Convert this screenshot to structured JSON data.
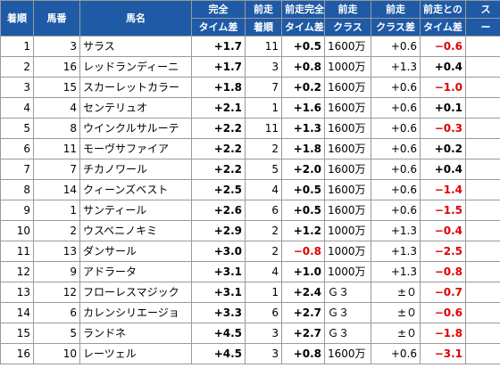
{
  "headers": {
    "rank": "着順",
    "horse_no": "馬番",
    "horse_name": "馬名",
    "gap_l1": "完全",
    "gap_l2": "タイム差",
    "prev_rank_l1": "前走",
    "prev_rank_l2": "着順",
    "prev_gap_l1": "前走完全",
    "prev_gap_l2": "タイム差",
    "prev_class_l1": "前走",
    "prev_class_l2": "クラス",
    "prev_class_gap_l1": "前走",
    "prev_class_gap_l2": "クラス差",
    "diff_l1": "前走との",
    "diff_l2": "タイム差",
    "extra_l1": "ス",
    "extra_l2": "ー"
  },
  "rows": [
    {
      "rank": "1",
      "no": "3",
      "name": "サラス",
      "gap": "+1.7",
      "prev_rank": "11",
      "prev_gap": "+0.5",
      "prev_gap_neg": false,
      "prev_class": "1600万",
      "class_gap": "+0.6",
      "diff": "−0.6",
      "diff_neg": true
    },
    {
      "rank": "2",
      "no": "16",
      "name": "レッドランディーニ",
      "gap": "+1.7",
      "prev_rank": "3",
      "prev_gap": "+0.8",
      "prev_gap_neg": false,
      "prev_class": "1000万",
      "class_gap": "+1.3",
      "diff": "+0.4",
      "diff_neg": false
    },
    {
      "rank": "3",
      "no": "15",
      "name": "スカーレットカラー",
      "gap": "+1.8",
      "prev_rank": "7",
      "prev_gap": "+0.2",
      "prev_gap_neg": false,
      "prev_class": "1600万",
      "class_gap": "+0.6",
      "diff": "−1.0",
      "diff_neg": true
    },
    {
      "rank": "4",
      "no": "4",
      "name": "センテリュオ",
      "gap": "+2.1",
      "prev_rank": "1",
      "prev_gap": "+1.6",
      "prev_gap_neg": false,
      "prev_class": "1600万",
      "class_gap": "+0.6",
      "diff": "+0.1",
      "diff_neg": false
    },
    {
      "rank": "5",
      "no": "8",
      "name": "ウインクルサルーテ",
      "gap": "+2.2",
      "prev_rank": "11",
      "prev_gap": "+1.3",
      "prev_gap_neg": false,
      "prev_class": "1600万",
      "class_gap": "+0.6",
      "diff": "−0.3",
      "diff_neg": true
    },
    {
      "rank": "6",
      "no": "11",
      "name": "モーヴサファイア",
      "gap": "+2.2",
      "prev_rank": "2",
      "prev_gap": "+1.8",
      "prev_gap_neg": false,
      "prev_class": "1600万",
      "class_gap": "+0.6",
      "diff": "+0.2",
      "diff_neg": false
    },
    {
      "rank": "7",
      "no": "7",
      "name": "チカノワール",
      "gap": "+2.2",
      "prev_rank": "5",
      "prev_gap": "+2.0",
      "prev_gap_neg": false,
      "prev_class": "1600万",
      "class_gap": "+0.6",
      "diff": "+0.4",
      "diff_neg": false
    },
    {
      "rank": "8",
      "no": "14",
      "name": "クィーンズベスト",
      "gap": "+2.5",
      "prev_rank": "4",
      "prev_gap": "+0.5",
      "prev_gap_neg": false,
      "prev_class": "1600万",
      "class_gap": "+0.6",
      "diff": "−1.4",
      "diff_neg": true
    },
    {
      "rank": "9",
      "no": "1",
      "name": "サンティール",
      "gap": "+2.6",
      "prev_rank": "6",
      "prev_gap": "+0.5",
      "prev_gap_neg": false,
      "prev_class": "1600万",
      "class_gap": "+0.6",
      "diff": "−1.5",
      "diff_neg": true
    },
    {
      "rank": "10",
      "no": "2",
      "name": "ウスベニノキミ",
      "gap": "+2.9",
      "prev_rank": "2",
      "prev_gap": "+1.2",
      "prev_gap_neg": false,
      "prev_class": "1000万",
      "class_gap": "+1.3",
      "diff": "−0.4",
      "diff_neg": true
    },
    {
      "rank": "11",
      "no": "13",
      "name": "ダンサール",
      "gap": "+3.0",
      "prev_rank": "2",
      "prev_gap": "−0.8",
      "prev_gap_neg": true,
      "prev_class": "1000万",
      "class_gap": "+1.3",
      "diff": "−2.5",
      "diff_neg": true
    },
    {
      "rank": "12",
      "no": "9",
      "name": "アドラータ",
      "gap": "+3.1",
      "prev_rank": "4",
      "prev_gap": "+1.0",
      "prev_gap_neg": false,
      "prev_class": "1000万",
      "class_gap": "+1.3",
      "diff": "−0.8",
      "diff_neg": true
    },
    {
      "rank": "13",
      "no": "12",
      "name": "フローレスマジック",
      "gap": "+3.1",
      "prev_rank": "1",
      "prev_gap": "+2.4",
      "prev_gap_neg": false,
      "prev_class": "Ｇ３",
      "class_gap": "±０",
      "diff": "−0.7",
      "diff_neg": true
    },
    {
      "rank": "14",
      "no": "6",
      "name": "カレンシリエージョ",
      "gap": "+3.3",
      "prev_rank": "6",
      "prev_gap": "+2.7",
      "prev_gap_neg": false,
      "prev_class": "Ｇ３",
      "class_gap": "±０",
      "diff": "−0.6",
      "diff_neg": true
    },
    {
      "rank": "15",
      "no": "5",
      "name": "ランドネ",
      "gap": "+4.5",
      "prev_rank": "3",
      "prev_gap": "+2.7",
      "prev_gap_neg": false,
      "prev_class": "Ｇ３",
      "class_gap": "±０",
      "diff": "−1.8",
      "diff_neg": true
    },
    {
      "rank": "16",
      "no": "10",
      "name": "レーツェル",
      "gap": "+4.5",
      "prev_rank": "3",
      "prev_gap": "+0.8",
      "prev_gap_neg": false,
      "prev_class": "1600万",
      "class_gap": "+0.6",
      "diff": "−3.1",
      "diff_neg": true
    }
  ]
}
